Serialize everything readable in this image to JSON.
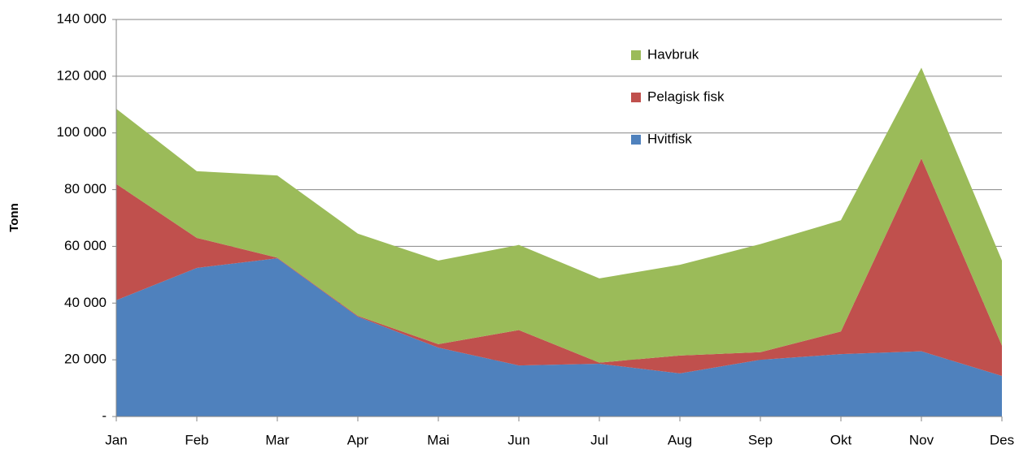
{
  "chart_data": {
    "type": "stacked-area",
    "ylabel": "Tonn",
    "categories": [
      "Jan",
      "Feb",
      "Mar",
      "Apr",
      "Mai",
      "Jun",
      "Jul",
      "Aug",
      "Sep",
      "Okt",
      "Nov",
      "Des"
    ],
    "series": [
      {
        "name": "Hvitfisk",
        "color": "#4f81bd",
        "values": [
          41000,
          52400,
          55800,
          35200,
          24300,
          18000,
          18600,
          15200,
          20000,
          22000,
          23000,
          14300
        ]
      },
      {
        "name": "Pelagisk fisk",
        "color": "#c0504d",
        "values": [
          41000,
          10600,
          200,
          300,
          1200,
          12500,
          400,
          6300,
          2700,
          8000,
          68000,
          10700
        ]
      },
      {
        "name": "Havbruk",
        "color": "#9bbb59",
        "values": [
          26500,
          23500,
          29000,
          29000,
          29500,
          30000,
          29700,
          32000,
          38100,
          39200,
          32000,
          30000
        ]
      }
    ],
    "ylim": [
      0,
      140000
    ],
    "yticks": [
      {
        "value": 0,
        "label": "-"
      },
      {
        "value": 20000,
        "label": "20 000"
      },
      {
        "value": 40000,
        "label": "40 000"
      },
      {
        "value": 60000,
        "label": "60 000"
      },
      {
        "value": 80000,
        "label": "80 000"
      },
      {
        "value": 100000,
        "label": "100 000"
      },
      {
        "value": 120000,
        "label": "120 000"
      },
      {
        "value": 140000,
        "label": "140 000"
      }
    ],
    "grid": true,
    "legend": "top-right"
  }
}
